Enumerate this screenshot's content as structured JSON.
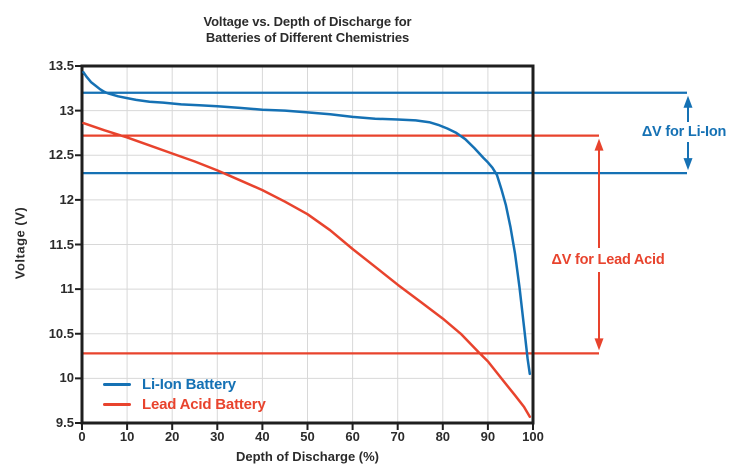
{
  "chart_data": {
    "type": "line",
    "title_lines": [
      "Voltage vs. Depth of Discharge for",
      "Batteries of Different Chemistries"
    ],
    "xlabel": "Depth of Discharge (%)",
    "ylabel": "Voltage (V)",
    "xlim": [
      0,
      100
    ],
    "ylim": [
      9.5,
      13.5
    ],
    "x_ticks": [
      0,
      10,
      20,
      30,
      40,
      50,
      60,
      70,
      80,
      90,
      100
    ],
    "y_ticks": [
      13.5,
      13,
      12.5,
      12,
      11.5,
      11,
      10.5,
      10,
      9.5
    ],
    "grid": true,
    "legend_position": "inside-bottom-left",
    "series": [
      {
        "name": "Li-Ion Battery",
        "color": "#1571B4",
        "points": [
          [
            0.3,
            13.43
          ],
          [
            1,
            13.38
          ],
          [
            2,
            13.32
          ],
          [
            3,
            13.28
          ],
          [
            4,
            13.24
          ],
          [
            5,
            13.21
          ],
          [
            6,
            13.19
          ],
          [
            8,
            13.16
          ],
          [
            10,
            13.14
          ],
          [
            12,
            13.12
          ],
          [
            15,
            13.1
          ],
          [
            18,
            13.09
          ],
          [
            22,
            13.07
          ],
          [
            26,
            13.06
          ],
          [
            30,
            13.05
          ],
          [
            35,
            13.03
          ],
          [
            40,
            13.01
          ],
          [
            45,
            13.0
          ],
          [
            50,
            12.98
          ],
          [
            55,
            12.96
          ],
          [
            60,
            12.93
          ],
          [
            65,
            12.91
          ],
          [
            70,
            12.9
          ],
          [
            74,
            12.89
          ],
          [
            77,
            12.87
          ],
          [
            79,
            12.84
          ],
          [
            81,
            12.8
          ],
          [
            83,
            12.75
          ],
          [
            85,
            12.68
          ],
          [
            87,
            12.58
          ],
          [
            89,
            12.47
          ],
          [
            90,
            12.42
          ],
          [
            91,
            12.36
          ],
          [
            92,
            12.28
          ],
          [
            93,
            12.12
          ],
          [
            94,
            11.94
          ],
          [
            95,
            11.7
          ],
          [
            96,
            11.4
          ],
          [
            97,
            11.02
          ],
          [
            98,
            10.58
          ],
          [
            98.8,
            10.22
          ],
          [
            99.3,
            10.05
          ]
        ]
      },
      {
        "name": "Lead Acid Battery",
        "color": "#E8432D",
        "points": [
          [
            0.3,
            12.86
          ],
          [
            5,
            12.78
          ],
          [
            10,
            12.7
          ],
          [
            15,
            12.61
          ],
          [
            20,
            12.52
          ],
          [
            25,
            12.43
          ],
          [
            30,
            12.33
          ],
          [
            35,
            12.22
          ],
          [
            40,
            12.11
          ],
          [
            45,
            11.98
          ],
          [
            50,
            11.84
          ],
          [
            55,
            11.66
          ],
          [
            60,
            11.45
          ],
          [
            65,
            11.25
          ],
          [
            70,
            11.05
          ],
          [
            75,
            10.86
          ],
          [
            80,
            10.67
          ],
          [
            84,
            10.5
          ],
          [
            88,
            10.29
          ],
          [
            90,
            10.19
          ],
          [
            93,
            10.0
          ],
          [
            96,
            9.81
          ],
          [
            98,
            9.68
          ],
          [
            99.3,
            9.57
          ]
        ]
      }
    ],
    "reference_lines": [
      {
        "name": "li-ion-upper",
        "voltage": 13.2,
        "color": "#1571B4"
      },
      {
        "name": "li-ion-lower",
        "voltage": 12.3,
        "color": "#1571B4"
      },
      {
        "name": "lead-acid-upper",
        "voltage": 12.72,
        "color": "#E8432D"
      },
      {
        "name": "lead-acid-lower",
        "voltage": 10.28,
        "color": "#E8432D"
      }
    ],
    "annotations": [
      {
        "text": "ΔV for Li-Ion",
        "color": "#1571B4"
      },
      {
        "text": "ΔV for Lead Acid",
        "color": "#E8432D"
      }
    ],
    "colors": {
      "axis_text": "#2B2B2B",
      "grid": "#D8D8D8",
      "frame": "#1F1F1F",
      "background": "#FFFFFF"
    }
  }
}
